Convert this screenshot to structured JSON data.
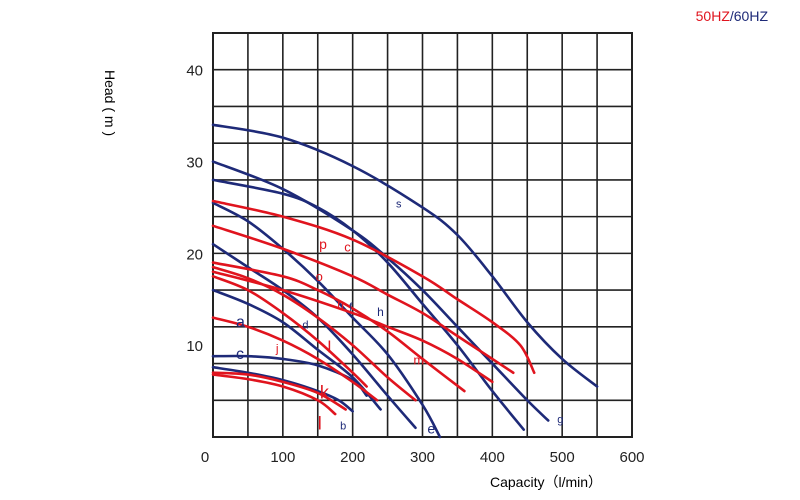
{
  "chart_data": {
    "type": "line",
    "legend": {
      "items": [
        {
          "label": "50HZ",
          "color": "#e0141e"
        },
        {
          "label": "/",
          "color": "#1e2a78"
        },
        {
          "label": "60HZ",
          "color": "#1e2a78"
        }
      ],
      "position": "top-right"
    },
    "xlabel": "Capacity（l/min）",
    "ylabel": "Head ( m )",
    "xlim": [
      0,
      600
    ],
    "ylim": [
      0,
      44
    ],
    "xticks": [
      "0",
      "100",
      "200",
      "300",
      "400",
      "500",
      "600"
    ],
    "yticks": [
      "10",
      "20",
      "30",
      "40"
    ],
    "grid": true,
    "colors": {
      "hz50": "#e0141e",
      "hz60": "#1e2a78"
    },
    "series": [
      {
        "name": "s",
        "freq": "60HZ",
        "x": [
          0,
          100,
          200,
          300,
          350,
          400,
          450,
          500,
          550
        ],
        "y": [
          34,
          32.6,
          29.5,
          25,
          22,
          17.5,
          12.5,
          8.5,
          5.5
        ]
      },
      {
        "name": "g",
        "freq": "60HZ",
        "x": [
          0,
          100,
          200,
          250,
          300,
          350,
          400,
          450,
          480
        ],
        "y": [
          30,
          27,
          22.5,
          19.5,
          16,
          12,
          8,
          4,
          1.8
        ]
      },
      {
        "name": "h",
        "freq": "60HZ",
        "x": [
          0,
          100,
          150,
          200,
          250,
          300,
          350,
          400,
          445
        ],
        "y": [
          28,
          26.5,
          25,
          22.5,
          19,
          14.5,
          10,
          5,
          0.8
        ]
      },
      {
        "name": "e",
        "freq": "60HZ",
        "x": [
          0,
          50,
          100,
          150,
          200,
          250,
          300,
          325
        ],
        "y": [
          25.5,
          23.5,
          20.5,
          17,
          13,
          9,
          3.5,
          0
        ]
      },
      {
        "name": "f",
        "freq": "60HZ",
        "x": [
          0,
          50,
          100,
          150,
          200,
          250,
          290
        ],
        "y": [
          21,
          18.5,
          16,
          13,
          9,
          4.5,
          1
        ]
      },
      {
        "name": "d",
        "freq": "60HZ",
        "x": [
          0,
          50,
          100,
          150,
          200,
          240
        ],
        "y": [
          16,
          14.5,
          12.5,
          9.5,
          6.5,
          3
        ]
      },
      {
        "name": "c",
        "freq": "60HZ",
        "x": [
          0,
          50,
          100,
          150,
          200,
          220
        ],
        "y": [
          8.8,
          8.8,
          8.5,
          7.8,
          6.2,
          4.5
        ]
      },
      {
        "name": "b",
        "freq": "60HZ",
        "x": [
          0,
          50,
          100,
          150,
          180,
          200
        ],
        "y": [
          7.6,
          7,
          6.2,
          5,
          4,
          2.8
        ]
      },
      {
        "name": "p",
        "freq": "50HZ",
        "x": [
          0,
          100,
          200,
          300,
          350,
          400,
          440,
          460
        ],
        "y": [
          25.7,
          24,
          21.5,
          17.5,
          15,
          12.5,
          10,
          7
        ]
      },
      {
        "name": "c",
        "freq": "50HZ",
        "x": [
          0,
          100,
          200,
          250,
          300,
          350,
          400,
          430
        ],
        "y": [
          23,
          20.5,
          17.5,
          15.5,
          13.5,
          11,
          8.5,
          7
        ]
      },
      {
        "name": "o",
        "freq": "50HZ",
        "x": [
          0,
          100,
          150,
          200,
          250,
          300,
          360
        ],
        "y": [
          19,
          17.5,
          16,
          14,
          11.5,
          8.5,
          5
        ]
      },
      {
        "name": "n",
        "freq": "50HZ",
        "x": [
          0,
          50,
          100,
          150,
          200,
          250,
          290
        ],
        "y": [
          18.5,
          17.3,
          15.5,
          13,
          10,
          6.5,
          4
        ]
      },
      {
        "name": "m",
        "freq": "50HZ",
        "x": [
          0,
          100,
          200,
          250,
          300,
          350,
          400
        ],
        "y": [
          18,
          16,
          13.5,
          12,
          10.5,
          8.5,
          6
        ]
      },
      {
        "name": "l",
        "freq": "50HZ",
        "x": [
          0,
          50,
          100,
          150,
          200,
          220
        ],
        "y": [
          17.5,
          16,
          13.5,
          10.5,
          7,
          5.5
        ]
      },
      {
        "name": "j",
        "freq": "50HZ",
        "x": [
          0,
          50,
          100,
          150,
          200,
          235
        ],
        "y": [
          13,
          12,
          10.5,
          8.5,
          6,
          4
        ]
      },
      {
        "name": "k",
        "freq": "50HZ",
        "x": [
          0,
          50,
          100,
          150,
          190
        ],
        "y": [
          7,
          6.8,
          6,
          4.8,
          3
        ]
      },
      {
        "name": "l",
        "freq": "50HZ",
        "x": [
          0,
          50,
          100,
          150,
          175
        ],
        "y": [
          6.8,
          6.3,
          5.5,
          4,
          2.5
        ]
      }
    ],
    "annotations": [
      {
        "text": "s",
        "x": 262,
        "y": 25,
        "color": "#1e2a78",
        "size": 11
      },
      {
        "text": "g",
        "x": 493,
        "y": 1.5,
        "color": "#1e2a78",
        "size": 11
      },
      {
        "text": "h",
        "x": 235,
        "y": 13.2,
        "color": "#1e2a78",
        "size": 12
      },
      {
        "text": "e",
        "x": 307,
        "y": 0.4,
        "color": "#1e2a78",
        "size": 14
      },
      {
        "text": "f",
        "x": 195,
        "y": 13.7,
        "color": "#1e2a78",
        "size": 12
      },
      {
        "text": "d",
        "x": 128,
        "y": 11.8,
        "color": "#1e2a78",
        "size": 11
      },
      {
        "text": "a",
        "x": 33,
        "y": 12,
        "color": "#1e2a78",
        "size": 16
      },
      {
        "text": "c",
        "x": 33,
        "y": 8.5,
        "color": "#1e2a78",
        "size": 16
      },
      {
        "text": "b",
        "x": 182,
        "y": 0.8,
        "color": "#1e2a78",
        "size": 11
      },
      {
        "text": "p",
        "x": 152,
        "y": 20.5,
        "color": "#e0141e",
        "size": 14
      },
      {
        "text": "c",
        "x": 188,
        "y": 20.2,
        "color": "#e0141e",
        "size": 13
      },
      {
        "text": "o",
        "x": 147,
        "y": 17,
        "color": "#e0141e",
        "size": 13
      },
      {
        "text": "n",
        "x": 178,
        "y": 14,
        "color": "#e0141e",
        "size": 12
      },
      {
        "text": "m",
        "x": 287,
        "y": 7.9,
        "color": "#e0141e",
        "size": 13
      },
      {
        "text": "l",
        "x": 164,
        "y": 9.2,
        "color": "#e0141e",
        "size": 17
      },
      {
        "text": "j",
        "x": 90,
        "y": 9.2,
        "color": "#e0141e",
        "size": 12
      },
      {
        "text": "k",
        "x": 153,
        "y": 4.2,
        "color": "#e0141e",
        "size": 18
      },
      {
        "text": "l",
        "x": 150,
        "y": 0.8,
        "color": "#e0141e",
        "size": 18
      }
    ]
  }
}
